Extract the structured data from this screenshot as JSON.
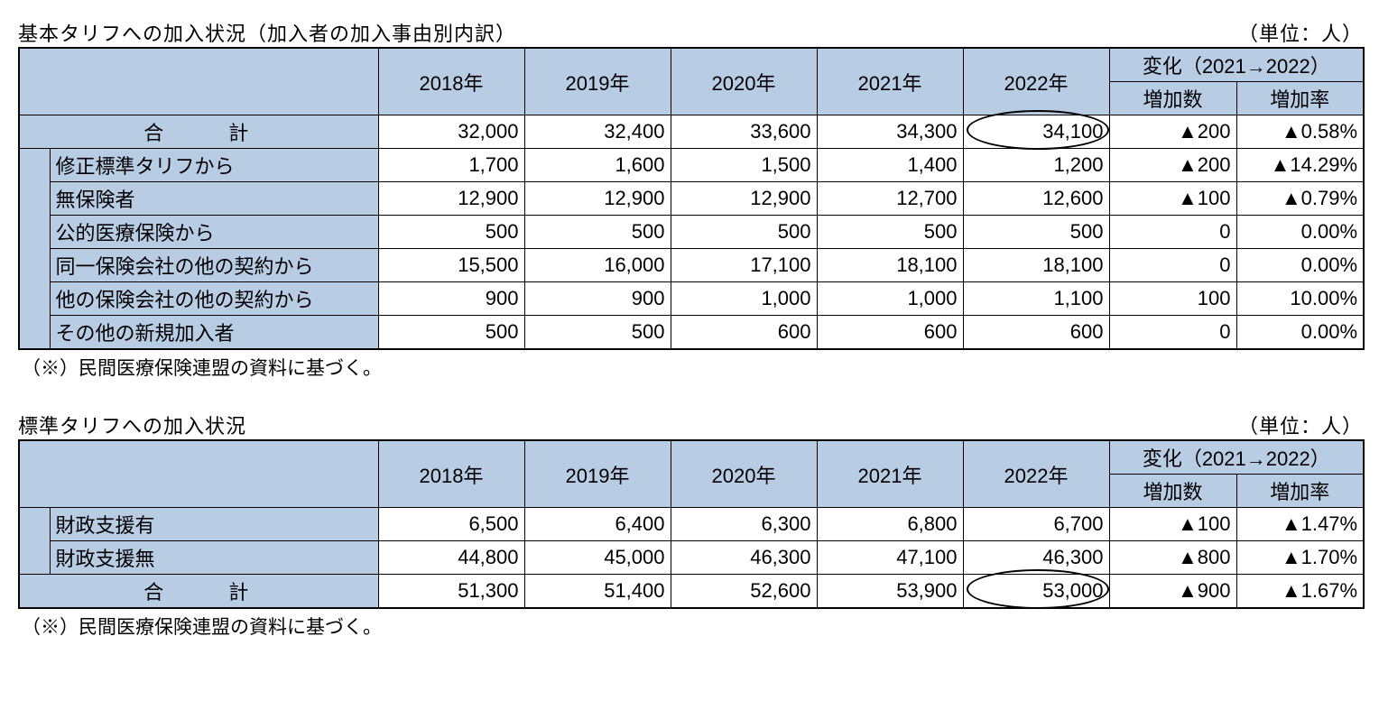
{
  "colors": {
    "header_bg": "#b8cce4",
    "border": "#000000",
    "text": "#000000"
  },
  "table1": {
    "title": "基本タリフへの加入状況（加入者の加入事由別内訳）",
    "unit": "（単位：人）",
    "years": [
      "2018年",
      "2019年",
      "2020年",
      "2021年",
      "2022年"
    ],
    "change_header": "変化（2021→2022）",
    "change_sub": [
      "増加数",
      "増加率"
    ],
    "total_label": "合 計",
    "total_cells": [
      "32,000",
      "32,400",
      "33,600",
      "34,300",
      "34,100",
      "▲200",
      "▲0.58%"
    ],
    "rows": [
      {
        "label": "修正標準タリフから",
        "cells": [
          "1,700",
          "1,600",
          "1,500",
          "1,400",
          "1,200",
          "▲200",
          "▲14.29%"
        ]
      },
      {
        "label": "無保険者",
        "cells": [
          "12,900",
          "12,900",
          "12,900",
          "12,700",
          "12,600",
          "▲100",
          "▲0.79%"
        ]
      },
      {
        "label": "公的医療保険から",
        "cells": [
          "500",
          "500",
          "500",
          "500",
          "500",
          "0",
          "0.00%"
        ]
      },
      {
        "label": "同一保険会社の他の契約から",
        "cells": [
          "15,500",
          "16,000",
          "17,100",
          "18,100",
          "18,100",
          "0",
          "0.00%"
        ]
      },
      {
        "label": "他の保険会社の他の契約から",
        "cells": [
          "900",
          "900",
          "1,000",
          "1,000",
          "1,100",
          "100",
          "10.00%"
        ]
      },
      {
        "label": "その他の新規加入者",
        "cells": [
          "500",
          "500",
          "600",
          "600",
          "600",
          "0",
          "0.00%"
        ]
      }
    ],
    "footnote": "（※）民間医療保険連盟の資料に基づく。"
  },
  "table2": {
    "title": "標準タリフへの加入状況",
    "unit": "（単位：人）",
    "years": [
      "2018年",
      "2019年",
      "2020年",
      "2021年",
      "2022年"
    ],
    "change_header": "変化（2021→2022）",
    "change_sub": [
      "増加数",
      "増加率"
    ],
    "rows": [
      {
        "label": "財政支援有",
        "cells": [
          "6,500",
          "6,400",
          "6,300",
          "6,800",
          "6,700",
          "▲100",
          "▲1.47%"
        ]
      },
      {
        "label": "財政支援無",
        "cells": [
          "44,800",
          "45,000",
          "46,300",
          "47,100",
          "46,300",
          "▲800",
          "▲1.70%"
        ]
      }
    ],
    "total_label": "合 計",
    "total_cells": [
      "51,300",
      "51,400",
      "52,600",
      "53,900",
      "53,000",
      "▲900",
      "▲1.67%"
    ],
    "footnote": "（※）民間医療保険連盟の資料に基づく。"
  }
}
